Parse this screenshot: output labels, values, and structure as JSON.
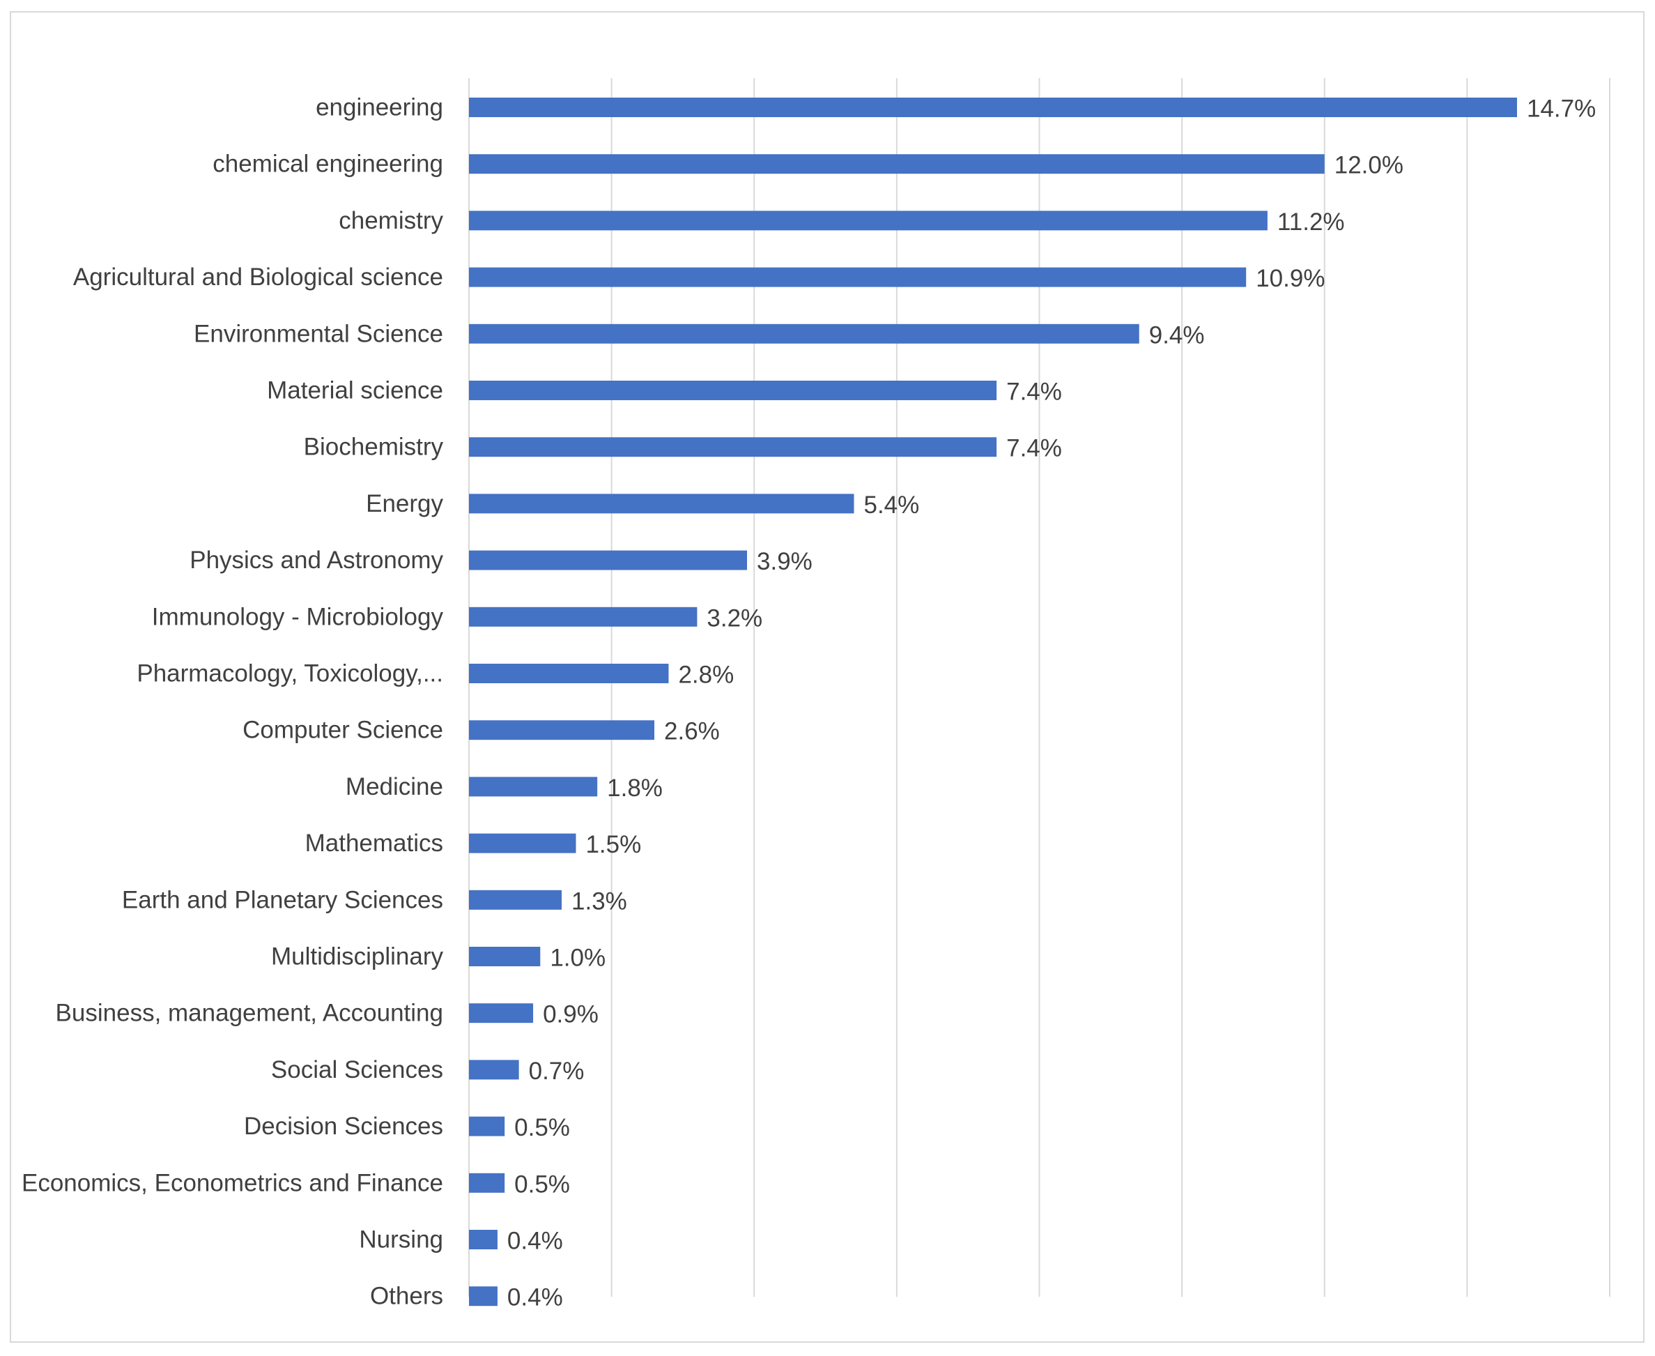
{
  "chart_data": {
    "type": "bar",
    "orientation": "horizontal",
    "categories": [
      "engineering",
      "chemical engineering",
      "chemistry",
      "Agricultural and Biological science",
      "Environmental Science",
      "Material science",
      "Biochemistry",
      "Energy",
      "Physics and Astronomy",
      "Immunology - Microbiology",
      "Pharmacology, Toxicology,...",
      "Computer Science",
      "Medicine",
      "Mathematics",
      "Earth and Planetary Sciences",
      "Multidisciplinary",
      "Business, management, Accounting",
      "Social Sciences",
      "Decision Sciences",
      "Economics, Econometrics and Finance",
      "Nursing",
      "Others"
    ],
    "values": [
      14.7,
      12.0,
      11.2,
      10.9,
      9.4,
      7.4,
      7.4,
      5.4,
      3.9,
      3.2,
      2.8,
      2.6,
      1.8,
      1.5,
      1.3,
      1.0,
      0.9,
      0.7,
      0.5,
      0.5,
      0.4,
      0.4
    ],
    "value_labels": [
      "14.7%",
      "12.0%",
      "11.2%",
      "10.9%",
      "9.4%",
      "7.4%",
      "7.4%",
      "5.4%",
      "3.9%",
      "3.2%",
      "2.8%",
      "2.6%",
      "1.8%",
      "1.5%",
      "1.3%",
      "1.0%",
      "0.9%",
      "0.7%",
      "0.5%",
      "0.5%",
      "0.4%",
      "0.4%"
    ],
    "unit": "%",
    "xlim": [
      0,
      16
    ],
    "grid_step": 2,
    "grid": true,
    "legend": "none",
    "title": "",
    "xlabel": "",
    "ylabel": "",
    "bar_color": "#4472c4",
    "grid_color": "#d9d9d9",
    "text_color": "#404040"
  }
}
